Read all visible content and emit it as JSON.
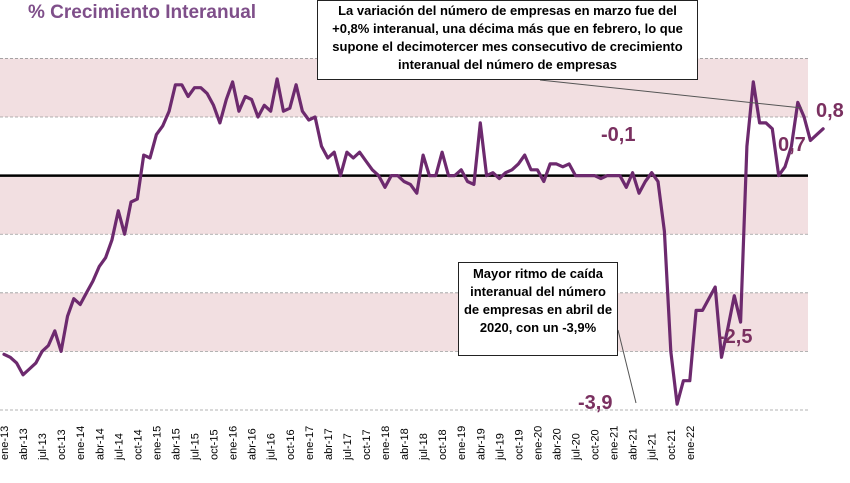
{
  "title": "% Crecimiento Interanual",
  "callouts": {
    "top": "La variación del número de empresas en marzo fue del +0,8% interanual, una décima más que en febrero, lo que supone el decimotercer mes consecutivo de crecimiento interanual del número de empresas",
    "bottom": "Mayor ritmo de caída interanual del número de empresas en abril de 2020, con un -3,9%"
  },
  "value_labels": {
    "v1": "-0,1",
    "v2": "-3,9",
    "v3": "-2,5",
    "v4": "0,7",
    "v5": "0,8"
  },
  "colors": {
    "line": "#6d2a6e",
    "band": "#f2dfe1",
    "title": "#7f4f8a",
    "labels": "#7a3060",
    "zero_line": "#000000"
  },
  "chart_data": {
    "type": "line",
    "title": "% Crecimiento Interanual",
    "xlabel": "",
    "ylabel": "",
    "ylim": [
      -4.0,
      2.4
    ],
    "grid": true,
    "legend": "none",
    "tick_labels": [
      "ene-13",
      "abr-13",
      "jul-13",
      "oct-13",
      "ene-14",
      "abr-14",
      "jul-14",
      "oct-14",
      "ene-15",
      "abr-15",
      "jul-15",
      "oct-15",
      "ene-16",
      "abr-16",
      "jul-16",
      "oct-16",
      "ene-17",
      "abr-17",
      "jul-17",
      "oct-17",
      "ene-18",
      "abr-18",
      "jul-18",
      "oct-18",
      "ene-19",
      "abr-19",
      "jul-19",
      "oct-19",
      "ene-20",
      "abr-20",
      "jul-20",
      "oct-20",
      "ene-21",
      "abr-21",
      "jul-21",
      "oct-21",
      "ene-22"
    ],
    "series": [
      {
        "values": [
          -3.05,
          -3.1,
          -3.2,
          -3.4,
          -3.3,
          -3.2,
          -3.0,
          -2.9,
          -2.65,
          -3.0,
          -2.4,
          -2.1,
          -2.2,
          -2.0,
          -1.8,
          -1.55,
          -1.4,
          -1.1,
          -0.6,
          -1.0,
          -0.45,
          -0.4,
          0.35,
          0.3,
          0.7,
          0.85,
          1.1,
          1.55,
          1.55,
          1.35,
          1.5,
          1.5,
          1.4,
          1.2,
          0.9,
          1.3,
          1.6,
          1.1,
          1.35,
          1.3,
          1.0,
          1.2,
          1.1,
          1.65,
          1.1,
          1.15,
          1.55,
          1.1,
          0.95,
          1.0,
          0.5,
          0.3,
          0.4,
          0.0,
          0.4,
          0.3,
          0.4,
          0.25,
          0.1,
          0.0,
          -0.2,
          0.0,
          0.0,
          -0.1,
          -0.15,
          -0.3,
          0.35,
          0.0,
          0.0,
          0.4,
          0.0,
          0.0,
          0.1,
          -0.1,
          -0.15,
          0.9,
          0.0,
          0.05,
          -0.05,
          0.05,
          0.1,
          0.2,
          0.35,
          0.1,
          0.1,
          -0.1,
          0.2,
          0.2,
          0.15,
          0.2,
          0.0,
          0.0,
          0.0,
          0.0,
          -0.05,
          0.0,
          0.0,
          0.0,
          -0.2,
          0.05,
          -0.3,
          -0.1,
          0.05,
          -0.1,
          -0.95,
          -3.0,
          -3.9,
          -3.5,
          -3.5,
          -2.3,
          -2.3,
          -2.1,
          -1.9,
          -3.1,
          -2.6,
          -2.05,
          -2.5,
          0.5,
          1.6,
          0.9,
          0.9,
          0.8,
          0.0,
          0.15,
          0.5,
          1.25,
          1.0,
          0.6,
          0.7,
          0.8
        ]
      }
    ]
  }
}
